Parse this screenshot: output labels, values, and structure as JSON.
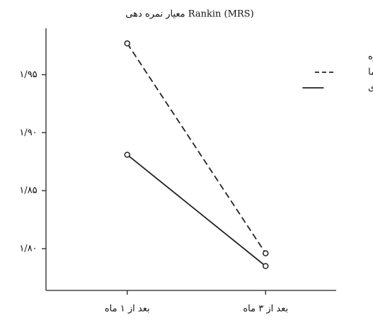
{
  "chart_data": {
    "type": "line",
    "title": "معیار نمره دهی Rankin (MRS)",
    "categories": [
      "بعد از ۱ ماه",
      "بعد از ۳ ماه"
    ],
    "series": [
      {
        "name": "دارونما",
        "color": "#222222",
        "line_style": "dashed",
        "values": [
          1.977,
          1.796
        ]
      },
      {
        "name": "مداخله ای",
        "color": "#222222",
        "line_style": "solid",
        "values": [
          1.881,
          1.785
        ]
      }
    ],
    "legend_title": "گروه",
    "legend_position": "right",
    "ylim": [
      1.764,
      1.99
    ],
    "yticks": [
      {
        "value": 1.8,
        "label": "۱/۸۰"
      },
      {
        "value": 1.85,
        "label": "۱/۸۵"
      },
      {
        "value": 1.9,
        "label": "۱/۹۰"
      },
      {
        "value": 1.95,
        "label": "۱/۹۵"
      }
    ]
  }
}
